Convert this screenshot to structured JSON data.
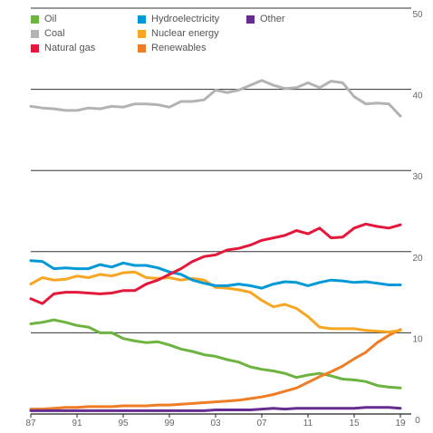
{
  "chart_data": {
    "type": "line",
    "title": "",
    "xlabel": "",
    "ylabel": "",
    "x": [
      1987,
      1988,
      1989,
      1990,
      1991,
      1992,
      1993,
      1994,
      1995,
      1996,
      1997,
      1998,
      1999,
      2000,
      2001,
      2002,
      2003,
      2004,
      2005,
      2006,
      2007,
      2008,
      2009,
      2010,
      2011,
      2012,
      2013,
      2014,
      2015,
      2016,
      2017,
      2018,
      2019
    ],
    "x_tick_labels": [
      "87",
      "91",
      "95",
      "99",
      "03",
      "07",
      "11",
      "15",
      "19"
    ],
    "x_tick_values": [
      1987,
      1991,
      1995,
      1999,
      2003,
      2007,
      2011,
      2015,
      2019
    ],
    "ylim": [
      0,
      50
    ],
    "y_tick_values": [
      0,
      10,
      20,
      30,
      40,
      50
    ],
    "y_tick_labels": [
      "0",
      "10",
      "20",
      "30",
      "40",
      "50"
    ],
    "axis_position": "right",
    "gridlines": [
      10,
      20,
      30,
      40,
      50
    ],
    "legend_position": "top",
    "series": [
      {
        "name": "Oil",
        "color": "#6db33f",
        "values": [
          11.1,
          11.3,
          11.6,
          11.3,
          10.9,
          10.7,
          10.0,
          10.0,
          9.3,
          9.0,
          8.8,
          8.9,
          8.5,
          8.0,
          7.7,
          7.3,
          7.1,
          6.7,
          6.4,
          5.8,
          5.5,
          5.3,
          5.0,
          4.5,
          4.8,
          5.0,
          4.7,
          4.3,
          4.2,
          4.0,
          3.5,
          3.3,
          3.2
        ]
      },
      {
        "name": "Coal",
        "color": "#b3b3b3",
        "values": [
          37.9,
          37.7,
          37.6,
          37.4,
          37.4,
          37.7,
          37.6,
          37.9,
          37.8,
          38.2,
          38.2,
          38.1,
          37.8,
          38.5,
          38.5,
          38.7,
          39.9,
          39.6,
          39.9,
          40.5,
          41.1,
          40.5,
          40.1,
          40.2,
          40.8,
          40.2,
          41.0,
          40.8,
          39.1,
          38.2,
          38.3,
          38.2,
          36.7
        ]
      },
      {
        "name": "Natural gas",
        "color": "#e3183a",
        "values": [
          14.2,
          13.6,
          14.8,
          15.0,
          15.0,
          14.9,
          14.8,
          14.9,
          15.2,
          15.2,
          16.0,
          16.5,
          17.2,
          17.9,
          18.8,
          19.4,
          19.6,
          20.2,
          20.4,
          20.8,
          21.4,
          21.7,
          22.0,
          22.6,
          22.2,
          22.9,
          21.7,
          21.8,
          22.9,
          23.4,
          23.1,
          22.9,
          23.3
        ]
      },
      {
        "name": "Hydroelectricity",
        "color": "#0099d8",
        "values": [
          18.9,
          18.8,
          17.9,
          18.0,
          17.9,
          17.9,
          18.4,
          18.1,
          18.6,
          18.3,
          18.3,
          18.0,
          17.5,
          17.2,
          16.5,
          16.1,
          15.8,
          15.8,
          16.0,
          15.8,
          15.5,
          16.0,
          16.3,
          16.2,
          15.8,
          16.2,
          16.5,
          16.4,
          16.2,
          16.3,
          16.1,
          15.9,
          15.9
        ]
      },
      {
        "name": "Nuclear energy",
        "color": "#f6a623",
        "values": [
          16.0,
          16.8,
          16.5,
          16.6,
          17.0,
          16.8,
          17.2,
          17.0,
          17.4,
          17.5,
          16.8,
          16.7,
          16.8,
          16.5,
          16.7,
          16.5,
          15.6,
          15.5,
          15.3,
          15.0,
          14.0,
          13.2,
          13.5,
          13.0,
          12.0,
          10.7,
          10.5,
          10.5,
          10.5,
          10.3,
          10.2,
          10.1,
          10.3
        ]
      },
      {
        "name": "Renewables",
        "color": "#ef7d25",
        "values": [
          0.6,
          0.6,
          0.7,
          0.8,
          0.8,
          0.9,
          0.9,
          0.9,
          1.0,
          1.0,
          1.0,
          1.1,
          1.1,
          1.2,
          1.3,
          1.4,
          1.5,
          1.6,
          1.7,
          1.9,
          2.1,
          2.4,
          2.8,
          3.2,
          3.9,
          4.6,
          5.2,
          5.9,
          6.8,
          7.6,
          8.8,
          9.7,
          10.4
        ]
      },
      {
        "name": "Other",
        "color": "#652d90",
        "values": [
          0.4,
          0.4,
          0.4,
          0.4,
          0.4,
          0.4,
          0.4,
          0.4,
          0.4,
          0.4,
          0.4,
          0.4,
          0.4,
          0.4,
          0.4,
          0.4,
          0.5,
          0.5,
          0.5,
          0.5,
          0.6,
          0.7,
          0.6,
          0.7,
          0.7,
          0.7,
          0.7,
          0.7,
          0.7,
          0.8,
          0.8,
          0.8,
          0.7
        ]
      }
    ]
  }
}
